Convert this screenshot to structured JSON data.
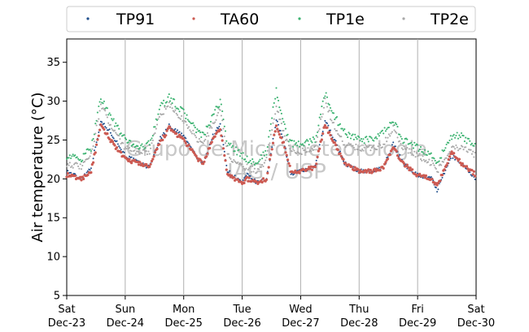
{
  "chart_data": {
    "type": "scatter",
    "ylabel": "Air temperature (°C)",
    "ylim": [
      5,
      38
    ],
    "xlim": [
      "2023-12-23T00:00",
      "2023-12-30T00:00"
    ],
    "y_ticks": [
      5,
      10,
      15,
      20,
      25,
      30,
      35
    ],
    "x_ticks": [
      {
        "date": "2023-12-23",
        "line1": "Sat",
        "line2": "Dec-23"
      },
      {
        "date": "2023-12-24",
        "line1": "Sun",
        "line2": "Dec-24"
      },
      {
        "date": "2023-12-25",
        "line1": "Mon",
        "line2": "Dec-25"
      },
      {
        "date": "2023-12-26",
        "line1": "Tue",
        "line2": "Dec-26"
      },
      {
        "date": "2023-12-27",
        "line1": "Wed",
        "line2": "Dec-27"
      },
      {
        "date": "2023-12-28",
        "line1": "Thu",
        "line2": "Dec-28"
      },
      {
        "date": "2023-12-29",
        "line1": "Fri",
        "line2": "Dec-29"
      },
      {
        "date": "2023-12-30",
        "line1": "Sat",
        "line2": "Dec-30"
      }
    ],
    "grid": "vertical",
    "legend_position": "top",
    "watermark": [
      "Grupo de Micrometeorologia",
      "IAG / USP"
    ],
    "series": [
      {
        "name": "TP91",
        "color": "#1f4e8c",
        "x": [
          "2023-12-23T00:00",
          "2023-12-23T06:00",
          "2023-12-23T10:00",
          "2023-12-23T14:00",
          "2023-12-23T18:00",
          "2023-12-24T00:00",
          "2023-12-24T06:00",
          "2023-12-24T10:00",
          "2023-12-24T14:00",
          "2023-12-24T18:00",
          "2023-12-25T00:00",
          "2023-12-25T06:00",
          "2023-12-25T08:00",
          "2023-12-25T12:00",
          "2023-12-25T15:00",
          "2023-12-25T18:00",
          "2023-12-26T00:00",
          "2023-12-26T02:00",
          "2023-12-26T06:00",
          "2023-12-26T10:00",
          "2023-12-26T14:00",
          "2023-12-26T17:00",
          "2023-12-26T20:00",
          "2023-12-27T00:00",
          "2023-12-27T06:00",
          "2023-12-27T10:00",
          "2023-12-27T14:00",
          "2023-12-27T18:00",
          "2023-12-28T00:00",
          "2023-12-28T06:00",
          "2023-12-28T10:00",
          "2023-12-28T14:00",
          "2023-12-28T18:00",
          "2023-12-29T00:00",
          "2023-12-29T06:00",
          "2023-12-29T08:00",
          "2023-12-29T14:00",
          "2023-12-29T18:00",
          "2023-12-30T00:00"
        ],
        "y": [
          21.0,
          20.0,
          21.5,
          27.4,
          26.0,
          23.0,
          22.0,
          21.5,
          25.0,
          26.8,
          25.5,
          22.5,
          22.0,
          25.5,
          27.0,
          21.0,
          19.5,
          20.5,
          19.5,
          20.0,
          27.5,
          25.0,
          20.5,
          21.0,
          21.5,
          27.5,
          25.0,
          22.0,
          21.0,
          21.0,
          21.5,
          24.5,
          22.0,
          20.5,
          20.0,
          18.5,
          23.0,
          22.0,
          20.0
        ]
      },
      {
        "name": "TA60",
        "color": "#cc5a52",
        "x": [
          "2023-12-23T00:00",
          "2023-12-23T06:00",
          "2023-12-23T10:00",
          "2023-12-23T14:00",
          "2023-12-23T18:00",
          "2023-12-24T00:00",
          "2023-12-24T06:00",
          "2023-12-24T10:00",
          "2023-12-24T14:00",
          "2023-12-24T18:00",
          "2023-12-25T00:00",
          "2023-12-25T06:00",
          "2023-12-25T08:00",
          "2023-12-25T12:00",
          "2023-12-25T15:00",
          "2023-12-25T18:00",
          "2023-12-26T00:00",
          "2023-12-26T02:00",
          "2023-12-26T06:00",
          "2023-12-26T10:00",
          "2023-12-26T14:00",
          "2023-12-26T17:00",
          "2023-12-26T20:00",
          "2023-12-27T00:00",
          "2023-12-27T06:00",
          "2023-12-27T10:00",
          "2023-12-27T14:00",
          "2023-12-27T18:00",
          "2023-12-28T00:00",
          "2023-12-28T06:00",
          "2023-12-28T10:00",
          "2023-12-28T14:00",
          "2023-12-28T18:00",
          "2023-12-29T00:00",
          "2023-12-29T06:00",
          "2023-12-29T08:00",
          "2023-12-29T14:00",
          "2023-12-29T18:00",
          "2023-12-30T00:00"
        ],
        "y": [
          20.5,
          20.0,
          21.0,
          26.8,
          25.0,
          22.5,
          22.0,
          21.5,
          24.5,
          26.5,
          25.0,
          22.5,
          22.0,
          25.0,
          26.5,
          20.5,
          19.5,
          20.0,
          19.5,
          20.0,
          27.0,
          24.5,
          21.0,
          21.0,
          21.5,
          27.0,
          24.5,
          22.0,
          21.0,
          21.0,
          21.5,
          24.0,
          22.0,
          20.5,
          20.0,
          19.0,
          23.5,
          22.0,
          20.5
        ]
      },
      {
        "name": "TP1e",
        "color": "#3cb371",
        "x": [
          "2023-12-23T00:00",
          "2023-12-23T06:00",
          "2023-12-23T10:00",
          "2023-12-23T14:00",
          "2023-12-23T18:00",
          "2023-12-24T00:00",
          "2023-12-24T06:00",
          "2023-12-24T10:00",
          "2023-12-24T14:00",
          "2023-12-24T18:00",
          "2023-12-25T00:00",
          "2023-12-25T06:00",
          "2023-12-25T08:00",
          "2023-12-25T12:00",
          "2023-12-25T15:00",
          "2023-12-25T18:00",
          "2023-12-26T00:00",
          "2023-12-26T02:00",
          "2023-12-26T06:00",
          "2023-12-26T10:00",
          "2023-12-26T14:00",
          "2023-12-26T17:00",
          "2023-12-26T20:00",
          "2023-12-27T00:00",
          "2023-12-27T06:00",
          "2023-12-27T10:00",
          "2023-12-27T14:00",
          "2023-12-27T18:00",
          "2023-12-28T00:00",
          "2023-12-28T06:00",
          "2023-12-28T10:00",
          "2023-12-28T14:00",
          "2023-12-28T18:00",
          "2023-12-29T00:00",
          "2023-12-29T06:00",
          "2023-12-29T08:00",
          "2023-12-29T14:00",
          "2023-12-29T18:00",
          "2023-12-30T00:00"
        ],
        "y": [
          23.0,
          22.5,
          24.0,
          30.5,
          28.0,
          25.0,
          24.0,
          24.5,
          29.0,
          30.5,
          28.5,
          26.0,
          25.5,
          28.0,
          30.0,
          24.5,
          23.0,
          22.5,
          22.0,
          23.5,
          31.5,
          27.0,
          24.5,
          24.5,
          25.0,
          31.0,
          28.0,
          26.0,
          25.0,
          25.0,
          26.0,
          27.5,
          25.0,
          24.0,
          23.0,
          22.0,
          25.5,
          25.5,
          24.0
        ]
      },
      {
        "name": "TP2e",
        "color": "#a8a8a8",
        "x": [
          "2023-12-23T00:00",
          "2023-12-23T06:00",
          "2023-12-23T10:00",
          "2023-12-23T14:00",
          "2023-12-23T18:00",
          "2023-12-24T00:00",
          "2023-12-24T06:00",
          "2023-12-24T10:00",
          "2023-12-24T14:00",
          "2023-12-24T18:00",
          "2023-12-25T00:00",
          "2023-12-25T06:00",
          "2023-12-25T08:00",
          "2023-12-25T12:00",
          "2023-12-25T15:00",
          "2023-12-25T18:00",
          "2023-12-26T00:00",
          "2023-12-26T02:00",
          "2023-12-26T06:00",
          "2023-12-26T10:00",
          "2023-12-26T14:00",
          "2023-12-26T17:00",
          "2023-12-26T20:00",
          "2023-12-27T00:00",
          "2023-12-27T06:00",
          "2023-12-27T10:00",
          "2023-12-27T14:00",
          "2023-12-27T18:00",
          "2023-12-28T00:00",
          "2023-12-28T06:00",
          "2023-12-28T10:00",
          "2023-12-28T14:00",
          "2023-12-28T18:00",
          "2023-12-29T00:00",
          "2023-12-29T06:00",
          "2023-12-29T08:00",
          "2023-12-29T14:00",
          "2023-12-29T18:00",
          "2023-12-30T00:00"
        ],
        "y": [
          22.0,
          21.5,
          23.0,
          29.5,
          27.0,
          24.0,
          23.5,
          23.5,
          28.0,
          29.5,
          27.5,
          25.0,
          24.5,
          27.0,
          29.0,
          23.0,
          21.5,
          21.5,
          21.0,
          22.5,
          29.5,
          26.0,
          23.5,
          23.5,
          24.0,
          30.0,
          26.5,
          24.5,
          24.0,
          24.0,
          24.5,
          26.5,
          24.0,
          23.0,
          22.0,
          21.0,
          24.0,
          24.0,
          23.0
        ]
      }
    ]
  }
}
